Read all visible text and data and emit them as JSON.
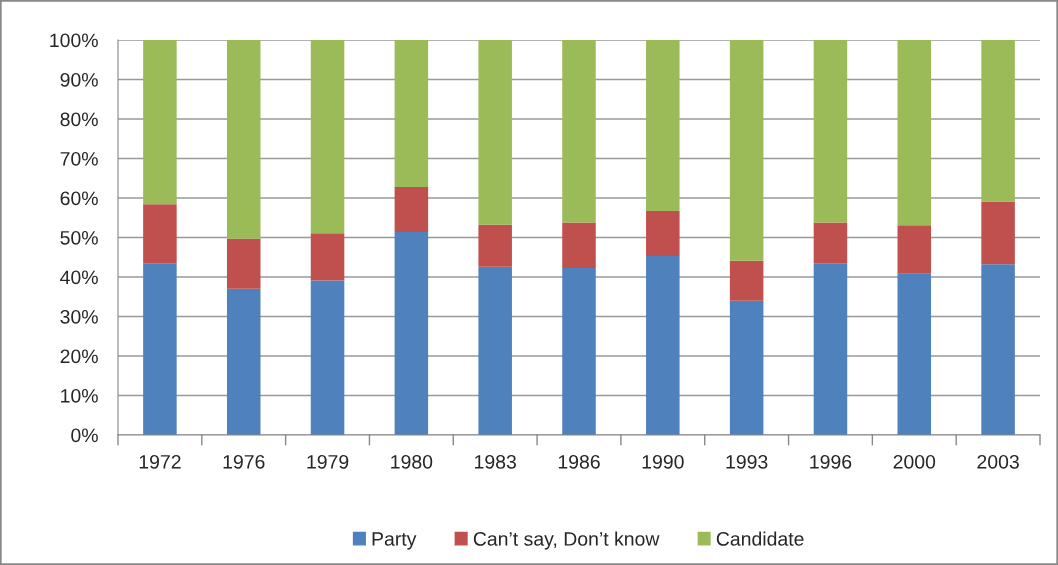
{
  "chart_data": {
    "type": "bar",
    "stacked": true,
    "categories": [
      "1972",
      "1976",
      "1979",
      "1980",
      "1983",
      "1986",
      "1990",
      "1993",
      "1996",
      "2000",
      "2003"
    ],
    "series": [
      {
        "name": "Party",
        "color": "#4f81bd",
        "values": [
          43.5,
          37.0,
          39.1,
          51.4,
          42.6,
          42.3,
          45.3,
          34.0,
          43.5,
          40.8,
          43.2
        ]
      },
      {
        "name": "Can’t say, Don’t know",
        "color": "#c0504d",
        "values": [
          14.9,
          12.7,
          12.0,
          11.4,
          10.6,
          11.5,
          11.4,
          10.1,
          10.3,
          12.3,
          15.9
        ]
      },
      {
        "name": "Candidate",
        "color": "#9bbb59",
        "values": [
          41.6,
          50.3,
          48.9,
          37.2,
          46.8,
          46.2,
          43.3,
          55.9,
          46.2,
          46.9,
          40.9
        ]
      }
    ],
    "ylim": [
      0,
      100
    ],
    "yticks": [
      {
        "value": 0,
        "label": "0%"
      },
      {
        "value": 10,
        "label": "10%"
      },
      {
        "value": 20,
        "label": "20%"
      },
      {
        "value": 30,
        "label": "30%"
      },
      {
        "value": 40,
        "label": "40%"
      },
      {
        "value": 50,
        "label": "50%"
      },
      {
        "value": 60,
        "label": "60%"
      },
      {
        "value": 70,
        "label": "70%"
      },
      {
        "value": 80,
        "label": "80%"
      },
      {
        "value": 90,
        "label": "90%"
      },
      {
        "value": 100,
        "label": "100%"
      }
    ],
    "grid": "y",
    "legend": "bottom"
  }
}
